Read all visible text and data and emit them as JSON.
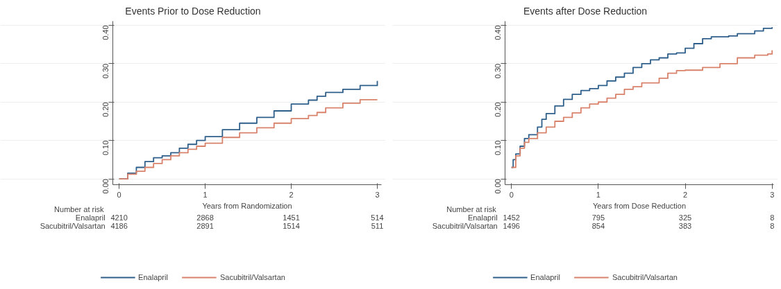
{
  "chart_data": [
    {
      "type": "step",
      "title": "Events Prior to Dose Reduction",
      "xlabel": "Years from Randomization",
      "xlim": [
        -0.07,
        3.05
      ],
      "ylim": [
        -0.015,
        0.41
      ],
      "xticks": [
        0,
        1,
        2,
        3
      ],
      "yticks": [
        {
          "value": 0,
          "label": "0.00"
        },
        {
          "value": 0.1,
          "label": "0.10"
        },
        {
          "value": 0.2,
          "label": "0.20"
        },
        {
          "value": 0.3,
          "label": "0.30"
        },
        {
          "value": 0.4,
          "label": "0.40"
        }
      ],
      "grid": "y",
      "legend": "bottom",
      "annotations": [
        "Number at risk",
        "4210",
        "2868",
        "1451",
        "514",
        "4186",
        "2891",
        "1514",
        "511"
      ],
      "x": [
        0,
        0.1,
        0.2,
        0.3,
        0.4,
        0.5,
        0.6,
        0.7,
        0.8,
        0.9,
        1.0,
        1.2,
        1.4,
        1.6,
        1.8,
        2.0,
        2.2,
        2.3,
        2.4,
        2.6,
        2.8,
        3.0
      ],
      "series": [
        {
          "name": "Enalapril",
          "color": "#2e5f8a",
          "values": [
            0,
            0.015,
            0.03,
            0.045,
            0.055,
            0.06,
            0.068,
            0.08,
            0.09,
            0.1,
            0.11,
            0.128,
            0.145,
            0.16,
            0.177,
            0.195,
            0.205,
            0.215,
            0.225,
            0.233,
            0.243,
            0.255
          ]
        },
        {
          "name": "Sacubitril/Valsartan",
          "color": "#d9826b",
          "values": [
            0,
            0.012,
            0.02,
            0.03,
            0.04,
            0.05,
            0.06,
            0.068,
            0.077,
            0.085,
            0.093,
            0.108,
            0.12,
            0.133,
            0.145,
            0.157,
            0.165,
            0.173,
            0.185,
            0.197,
            0.206,
            0.206
          ]
        }
      ]
    },
    {
      "type": "step",
      "title": "Events after Dose Reduction",
      "xlabel": "Years from Dose Reduction",
      "xlim": [
        -0.07,
        3.02
      ],
      "ylim": [
        -0.015,
        0.41
      ],
      "xticks": [
        0,
        1,
        2,
        3
      ],
      "yticks": [
        {
          "value": 0,
          "label": "0.00"
        },
        {
          "value": 0.1,
          "label": "0.10"
        },
        {
          "value": 0.2,
          "label": "0.20"
        },
        {
          "value": 0.3,
          "label": "0.30"
        },
        {
          "value": 0.4,
          "label": "0.40"
        }
      ],
      "grid": "y",
      "legend": "bottom",
      "annotations": [
        "Number at risk",
        "1452",
        "795",
        "325",
        "8",
        "1496",
        "854",
        "383",
        "8"
      ],
      "series": [
        {
          "name": "Enalapril",
          "color": "#2e5f8a",
          "x": [
            0,
            0.02,
            0.05,
            0.1,
            0.15,
            0.2,
            0.3,
            0.35,
            0.4,
            0.5,
            0.6,
            0.7,
            0.8,
            0.9,
            1.0,
            1.1,
            1.2,
            1.3,
            1.4,
            1.5,
            1.6,
            1.7,
            1.8,
            1.9,
            2.0,
            2.1,
            2.2,
            2.3,
            2.5,
            2.6,
            2.8,
            2.9,
            3.0
          ],
          "values": [
            0.03,
            0.05,
            0.065,
            0.085,
            0.105,
            0.115,
            0.135,
            0.155,
            0.17,
            0.19,
            0.207,
            0.22,
            0.23,
            0.235,
            0.243,
            0.255,
            0.265,
            0.275,
            0.29,
            0.3,
            0.31,
            0.315,
            0.325,
            0.328,
            0.34,
            0.352,
            0.365,
            0.37,
            0.372,
            0.378,
            0.385,
            0.392,
            0.395
          ]
        },
        {
          "name": "Sacubitril/Valsartan",
          "color": "#d9826b",
          "x": [
            0,
            0.05,
            0.1,
            0.15,
            0.2,
            0.3,
            0.4,
            0.5,
            0.6,
            0.7,
            0.8,
            0.9,
            1.0,
            1.1,
            1.2,
            1.3,
            1.4,
            1.5,
            1.6,
            1.7,
            1.8,
            1.9,
            2.0,
            2.2,
            2.4,
            2.6,
            2.8,
            2.95,
            3.0
          ],
          "values": [
            0.03,
            0.06,
            0.08,
            0.095,
            0.105,
            0.12,
            0.135,
            0.15,
            0.16,
            0.172,
            0.185,
            0.195,
            0.2,
            0.21,
            0.22,
            0.233,
            0.24,
            0.25,
            0.25,
            0.262,
            0.275,
            0.282,
            0.283,
            0.29,
            0.3,
            0.315,
            0.322,
            0.325,
            0.335
          ]
        }
      ]
    }
  ]
}
